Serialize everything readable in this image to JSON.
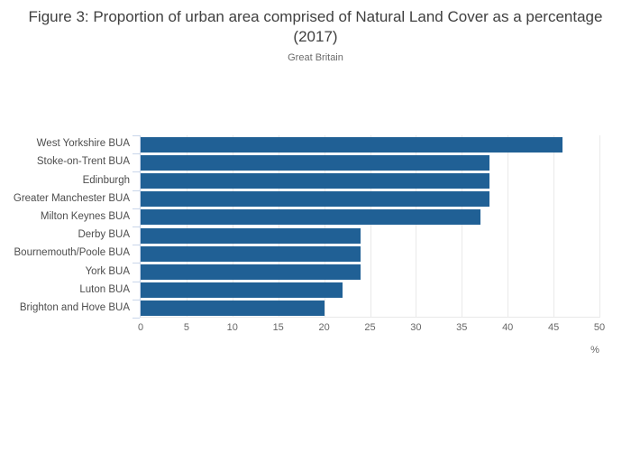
{
  "chart_data": {
    "type": "bar",
    "orientation": "horizontal",
    "title": "Figure 3: Proportion of urban area comprised of Natural Land Cover as a percentage (2017)",
    "subtitle": "Great Britain",
    "categories": [
      "West Yorkshire BUA",
      "Stoke-on-Trent BUA",
      "Edinburgh",
      "Greater Manchester BUA",
      "Milton Keynes BUA",
      "Derby BUA",
      "Bournemouth/Poole BUA",
      "York BUA",
      "Luton BUA",
      "Brighton and Hove BUA"
    ],
    "values": [
      46,
      38,
      38,
      38,
      37,
      24,
      24,
      24,
      22,
      20
    ],
    "xlabel": "%",
    "ylabel": "",
    "xlim": [
      0,
      50
    ],
    "xticks": [
      0,
      5,
      10,
      15,
      20,
      25,
      30,
      35,
      40,
      45,
      50
    ],
    "grid": true,
    "legend": "none",
    "colors": {
      "bar": "#206095",
      "grid": "#e9e9e9",
      "y_axis": "#c9d6ea",
      "title_text": "#404040",
      "subtitle_text": "#6b6b6b",
      "category_text": "#4d4d4d",
      "tick_text": "#666666"
    }
  }
}
